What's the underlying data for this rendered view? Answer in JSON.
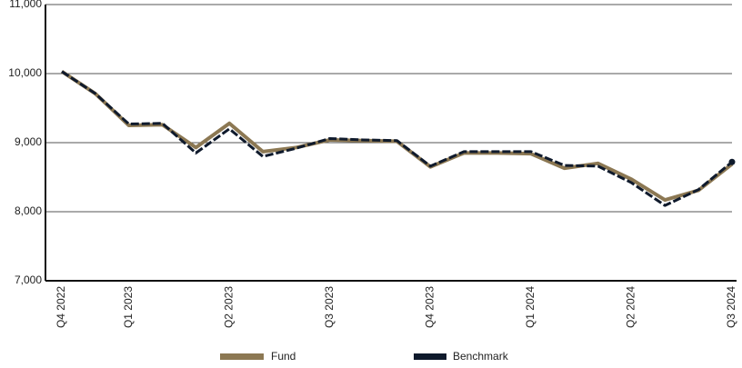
{
  "chart_data": {
    "type": "line",
    "categories": [
      "Q4 2022",
      null,
      "Q1 2023",
      null,
      null,
      "Q2 2023",
      null,
      null,
      "Q3 2023",
      null,
      null,
      "Q4 2023",
      null,
      null,
      "Q1 2024",
      null,
      null,
      "Q2 2024",
      null,
      null,
      "Q3 2024"
    ],
    "series": [
      {
        "name": "Fund",
        "color": "#8c7853",
        "values": [
          10030,
          9710,
          9250,
          9260,
          8930,
          9280,
          8870,
          8930,
          9040,
          9030,
          9020,
          8650,
          8850,
          8850,
          8840,
          8630,
          8700,
          8470,
          8170,
          8310,
          8690
        ]
      },
      {
        "name": "Benchmark",
        "color": "#0f1a2c",
        "values": [
          10030,
          9710,
          9270,
          9280,
          8850,
          9200,
          8800,
          8920,
          9060,
          9040,
          9030,
          8660,
          8870,
          8870,
          8870,
          8670,
          8660,
          8420,
          8090,
          8320,
          8720
        ]
      }
    ],
    "ylim": [
      7000,
      11000
    ],
    "yticks": [
      {
        "value": 7000,
        "label": "7,000"
      },
      {
        "value": 8000,
        "label": "8,000"
      },
      {
        "value": 9000,
        "label": "9,000"
      },
      {
        "value": 10000,
        "label": "10,000"
      },
      {
        "value": 11000,
        "label": "11,000"
      }
    ],
    "grid": true
  }
}
